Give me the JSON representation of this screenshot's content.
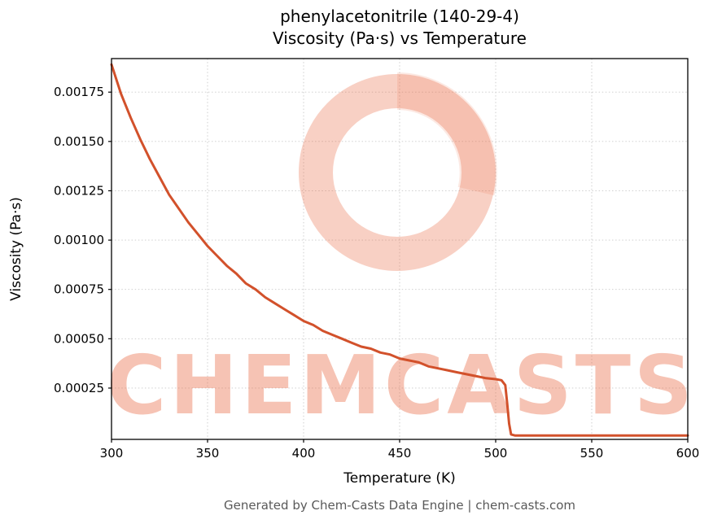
{
  "page": {
    "footer": "Generated by Chem-Casts Data Engine | chem-casts.com",
    "watermark_text": "CHEMCASTS",
    "watermark_color": "#e8643c"
  },
  "chart_data": {
    "type": "line",
    "title_line1": "phenylacetonitrile (140-29-4)",
    "title_line2": "Viscosity (Pa·s) vs Temperature",
    "xlabel": "Temperature (K)",
    "ylabel": "Viscosity (Pa·s)",
    "xlim": [
      300,
      600
    ],
    "ylim": [
      -1e-05,
      0.00192
    ],
    "grid": true,
    "legend": "none",
    "line_color": "#d2512b",
    "x_ticks": [
      300,
      350,
      400,
      450,
      500,
      550,
      600
    ],
    "y_ticks": [
      {
        "value": 0.00025,
        "label": "0.00025"
      },
      {
        "value": 0.0005,
        "label": "0.00050"
      },
      {
        "value": 0.00075,
        "label": "0.00075"
      },
      {
        "value": 0.001,
        "label": "0.00100"
      },
      {
        "value": 0.00125,
        "label": "0.00125"
      },
      {
        "value": 0.0015,
        "label": "0.00150"
      },
      {
        "value": 0.00175,
        "label": "0.00175"
      }
    ],
    "series": [
      {
        "name": "viscosity",
        "points": [
          [
            300,
            0.00189
          ],
          [
            305,
            0.00174
          ],
          [
            310,
            0.00162
          ],
          [
            315,
            0.00151
          ],
          [
            320,
            0.00141
          ],
          [
            325,
            0.00132
          ],
          [
            330,
            0.00123
          ],
          [
            335,
            0.00116
          ],
          [
            340,
            0.00109
          ],
          [
            345,
            0.00103
          ],
          [
            350,
            0.00097
          ],
          [
            355,
            0.00092
          ],
          [
            360,
            0.00087
          ],
          [
            365,
            0.00083
          ],
          [
            370,
            0.00078
          ],
          [
            375,
            0.00075
          ],
          [
            380,
            0.00071
          ],
          [
            385,
            0.00068
          ],
          [
            390,
            0.00065
          ],
          [
            395,
            0.00062
          ],
          [
            400,
            0.00059
          ],
          [
            405,
            0.00057
          ],
          [
            410,
            0.00054
          ],
          [
            415,
            0.00052
          ],
          [
            420,
            0.0005
          ],
          [
            425,
            0.00048
          ],
          [
            430,
            0.00046
          ],
          [
            435,
            0.00045
          ],
          [
            440,
            0.00043
          ],
          [
            445,
            0.00042
          ],
          [
            450,
            0.0004
          ],
          [
            455,
            0.00039
          ],
          [
            460,
            0.00038
          ],
          [
            465,
            0.00036
          ],
          [
            470,
            0.00035
          ],
          [
            475,
            0.00034
          ],
          [
            480,
            0.00033
          ],
          [
            485,
            0.00032
          ],
          [
            490,
            0.00031
          ],
          [
            495,
            0.0003
          ],
          [
            500,
            0.000295
          ],
          [
            503,
            0.00029
          ],
          [
            505,
            0.000265
          ],
          [
            506,
            0.00017
          ],
          [
            507,
            7e-05
          ],
          [
            508,
            1.5e-05
          ],
          [
            510,
            1e-05
          ],
          [
            520,
            1e-05
          ],
          [
            540,
            1e-05
          ],
          [
            560,
            1e-05
          ],
          [
            580,
            1e-05
          ],
          [
            600,
            1e-05
          ]
        ]
      }
    ]
  }
}
